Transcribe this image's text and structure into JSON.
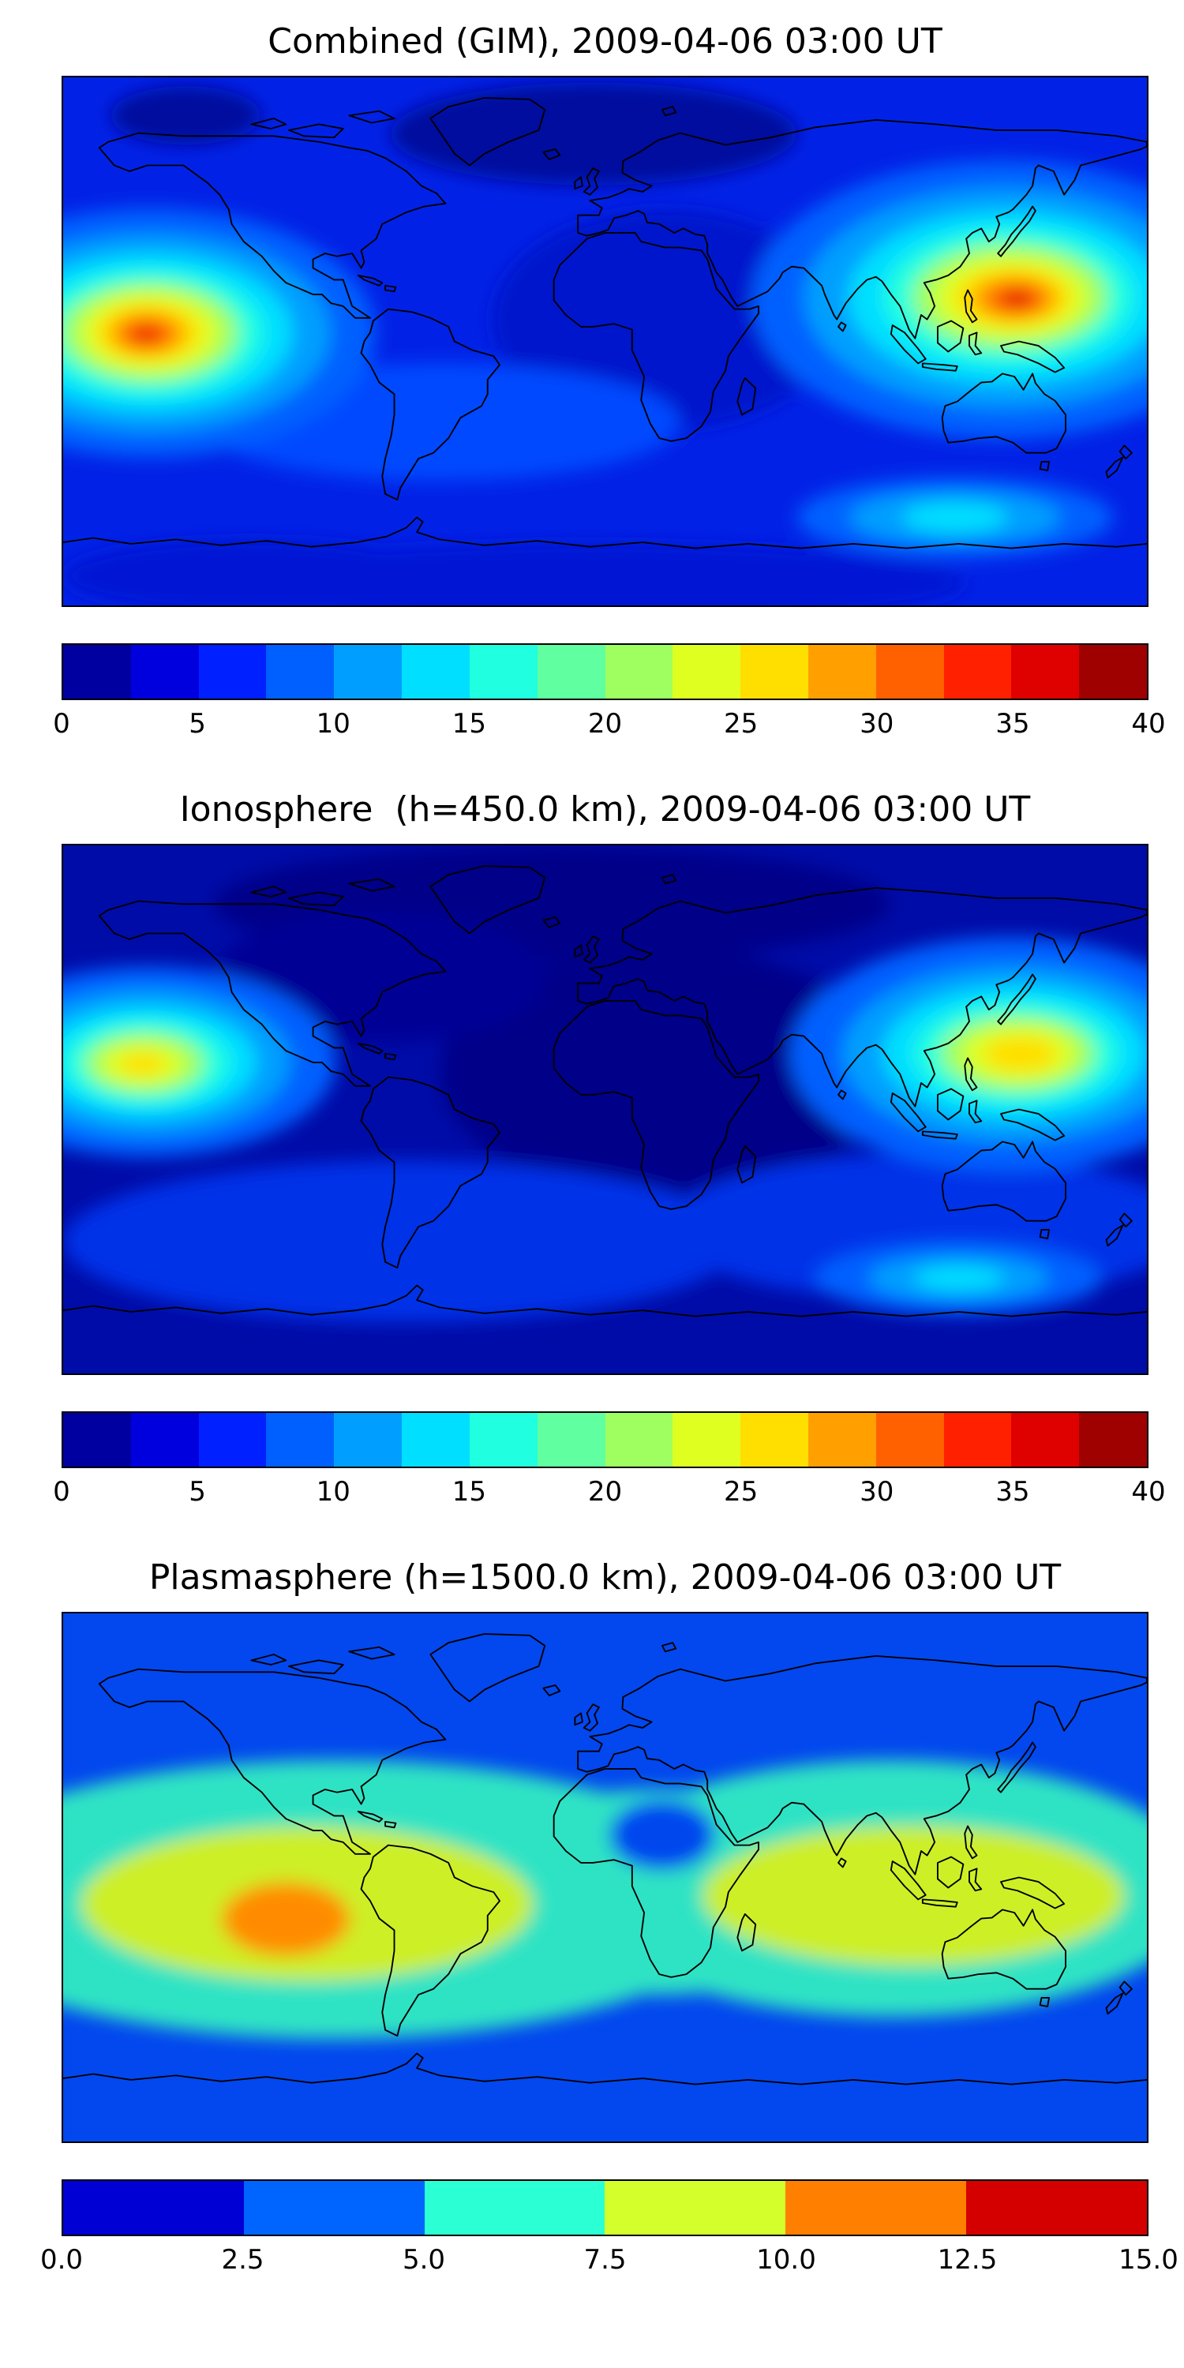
{
  "figure": {
    "background": "#ffffff",
    "map_border_color": "#000000",
    "coastline_color": "#000000"
  },
  "panels": [
    {
      "title": "Combined (GIM), 2009-04-06 03:00 UT",
      "colorbar": {
        "min": 0,
        "max": 40,
        "ticks": [
          "0",
          "5",
          "10",
          "15",
          "20",
          "25",
          "30",
          "35",
          "40"
        ],
        "colors": [
          "#0000a0",
          "#0000df",
          "#0020ff",
          "#0060ff",
          "#009fff",
          "#00dfff",
          "#20ffdf",
          "#60ff9f",
          "#9fff60",
          "#dfff20",
          "#ffdf00",
          "#ff9f00",
          "#ff6000",
          "#ff2000",
          "#df0000",
          "#9f0000"
        ]
      }
    },
    {
      "title": "Ionosphere  (h=450.0 km), 2009-04-06 03:00 UT",
      "colorbar": {
        "min": 0,
        "max": 40,
        "ticks": [
          "0",
          "5",
          "10",
          "15",
          "20",
          "25",
          "30",
          "35",
          "40"
        ],
        "colors": [
          "#0000a0",
          "#0000df",
          "#0020ff",
          "#0060ff",
          "#009fff",
          "#00dfff",
          "#20ffdf",
          "#60ff9f",
          "#9fff60",
          "#dfff20",
          "#ffdf00",
          "#ff9f00",
          "#ff6000",
          "#ff2000",
          "#df0000",
          "#9f0000"
        ]
      }
    },
    {
      "title": "Plasmasphere (h=1500.0 km), 2009-04-06 03:00 UT",
      "colorbar": {
        "min": 0,
        "max": 15,
        "ticks": [
          "0.0",
          "2.5",
          "5.0",
          "7.5",
          "10.0",
          "12.5",
          "15.0"
        ],
        "colors": [
          "#0000d4",
          "#0064ff",
          "#2bffd4",
          "#d4ff2b",
          "#ff8000",
          "#d40000"
        ]
      }
    }
  ],
  "chart_data": [
    {
      "type": "heatmap",
      "subtype": "filled-contour world map",
      "title": "Combined (GIM), 2009-04-06 03:00 UT",
      "colormap": "jet",
      "projection": "equirectangular, lon -180..180, lat -90..90",
      "value_range": [
        0,
        40
      ],
      "contour_step": 2.5,
      "colorbar_ticks": [
        0,
        5,
        10,
        15,
        20,
        25,
        30,
        35,
        40
      ],
      "legend_position": "horizontal colorbar below map",
      "features": [
        {
          "name": "TEC maximum, central Pacific sector",
          "lon": -150,
          "lat": 3,
          "peak_value": 37
        },
        {
          "name": "TEC maximum, east Asia / Philippines sector",
          "lon": 132,
          "lat": 13,
          "peak_value": 39
        },
        {
          "name": "mid-latitude background",
          "value_range": [
            3,
            10
          ]
        },
        {
          "name": "polar / night-side minimum (Arctic and Atlantic sectors)",
          "value_range": [
            0,
            3
          ]
        },
        {
          "name": "secondary enhancement south of Australia",
          "lon": 117,
          "lat": -60,
          "value": 10
        }
      ]
    },
    {
      "type": "heatmap",
      "subtype": "filled-contour world map",
      "title": "Ionosphere  (h=450.0 km), 2009-04-06 03:00 UT",
      "colormap": "jet",
      "projection": "equirectangular, lon -180..180, lat -90..90",
      "value_range": [
        0,
        40
      ],
      "contour_step": 2.5,
      "colorbar_ticks": [
        0,
        5,
        10,
        15,
        20,
        25,
        30,
        35,
        40
      ],
      "legend_position": "horizontal colorbar below map",
      "features": [
        {
          "name": "ionospheric maximum, central Pacific sector",
          "lon": -152,
          "lat": 0,
          "peak_value": 27
        },
        {
          "name": "ionospheric maximum, east Asia sector",
          "lon": 134,
          "lat": 19,
          "peak_value": 29
        },
        {
          "name": "dark background (night side, most of map)",
          "value_range": [
            0,
            5
          ]
        },
        {
          "name": "secondary enhancement south of Australia",
          "lon": 118,
          "lat": -59,
          "value": 8
        }
      ]
    },
    {
      "type": "heatmap",
      "subtype": "filled-contour world map",
      "title": "Plasmasphere (h=1500.0 km), 2009-04-06 03:00 UT",
      "colormap": "jet",
      "projection": "equirectangular, lon -180..180, lat -90..90",
      "value_range": [
        0,
        15
      ],
      "contour_step": 2.5,
      "colorbar_ticks": [
        0.0,
        2.5,
        5.0,
        7.5,
        10.0,
        12.5,
        15.0
      ],
      "legend_position": "horizontal colorbar below map",
      "features": [
        {
          "name": "equatorial plasmaspheric belt (yellow-green band)",
          "lat_range": [
            -25,
            15
          ],
          "value_range": [
            7.5,
            10
          ]
        },
        {
          "name": "peak, east Pacific / South America sector",
          "lon": -106,
          "lat": -14,
          "peak_value": 11
        },
        {
          "name": "local depression over central Africa",
          "lon": 19,
          "lat": 14,
          "value": 4
        },
        {
          "name": "transition band (turquoise)",
          "value_range": [
            5,
            7.5
          ]
        },
        {
          "name": "polar minimum",
          "value_range": [
            2.5,
            5
          ]
        }
      ]
    }
  ]
}
